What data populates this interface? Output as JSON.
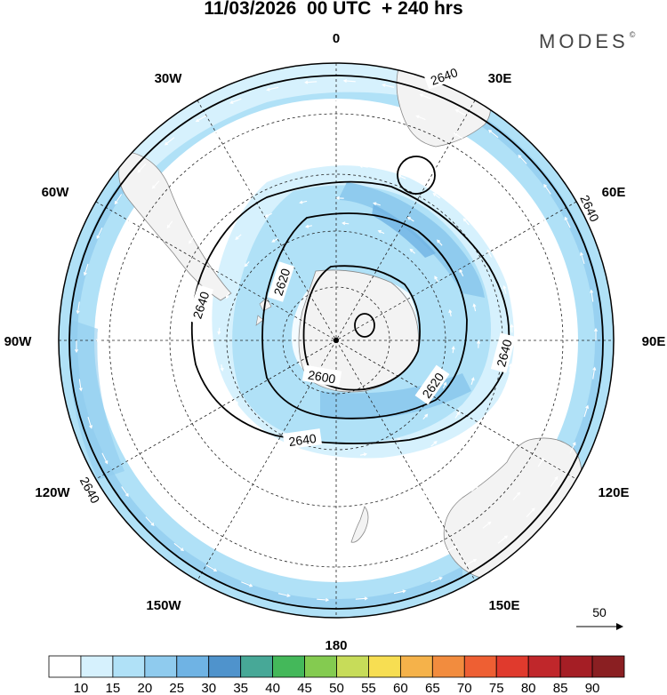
{
  "header": {
    "title": "11/03/2026  00 UTC  + 240 hrs",
    "brand": "MODES",
    "brand_mark": "©"
  },
  "longitude_labels": [
    "0",
    "30E",
    "60E",
    "90E",
    "120E",
    "150E",
    "180",
    "150W",
    "120W",
    "90W",
    "60W",
    "30W"
  ],
  "contour_labels": [
    "2640",
    "2640",
    "2640",
    "2620",
    "2640",
    "2600",
    "2620",
    "2640",
    "2640"
  ],
  "vector_reference": {
    "value": "50"
  },
  "colorbar": {
    "ticks": [
      "10",
      "15",
      "20",
      "25",
      "30",
      "35",
      "40",
      "45",
      "50",
      "55",
      "60",
      "65",
      "70",
      "75",
      "80",
      "85",
      "90"
    ],
    "colors": [
      "#ffffff",
      "#d6f1fd",
      "#b0e1f7",
      "#8fcbee",
      "#6fb3e4",
      "#4f93cc",
      "#47a897",
      "#44b85a",
      "#84cb50",
      "#c7dc59",
      "#f7de52",
      "#f5b24a",
      "#f28c3e",
      "#ee5f33",
      "#e03a2d",
      "#c0272b",
      "#a51e25",
      "#8a1f22"
    ]
  }
}
